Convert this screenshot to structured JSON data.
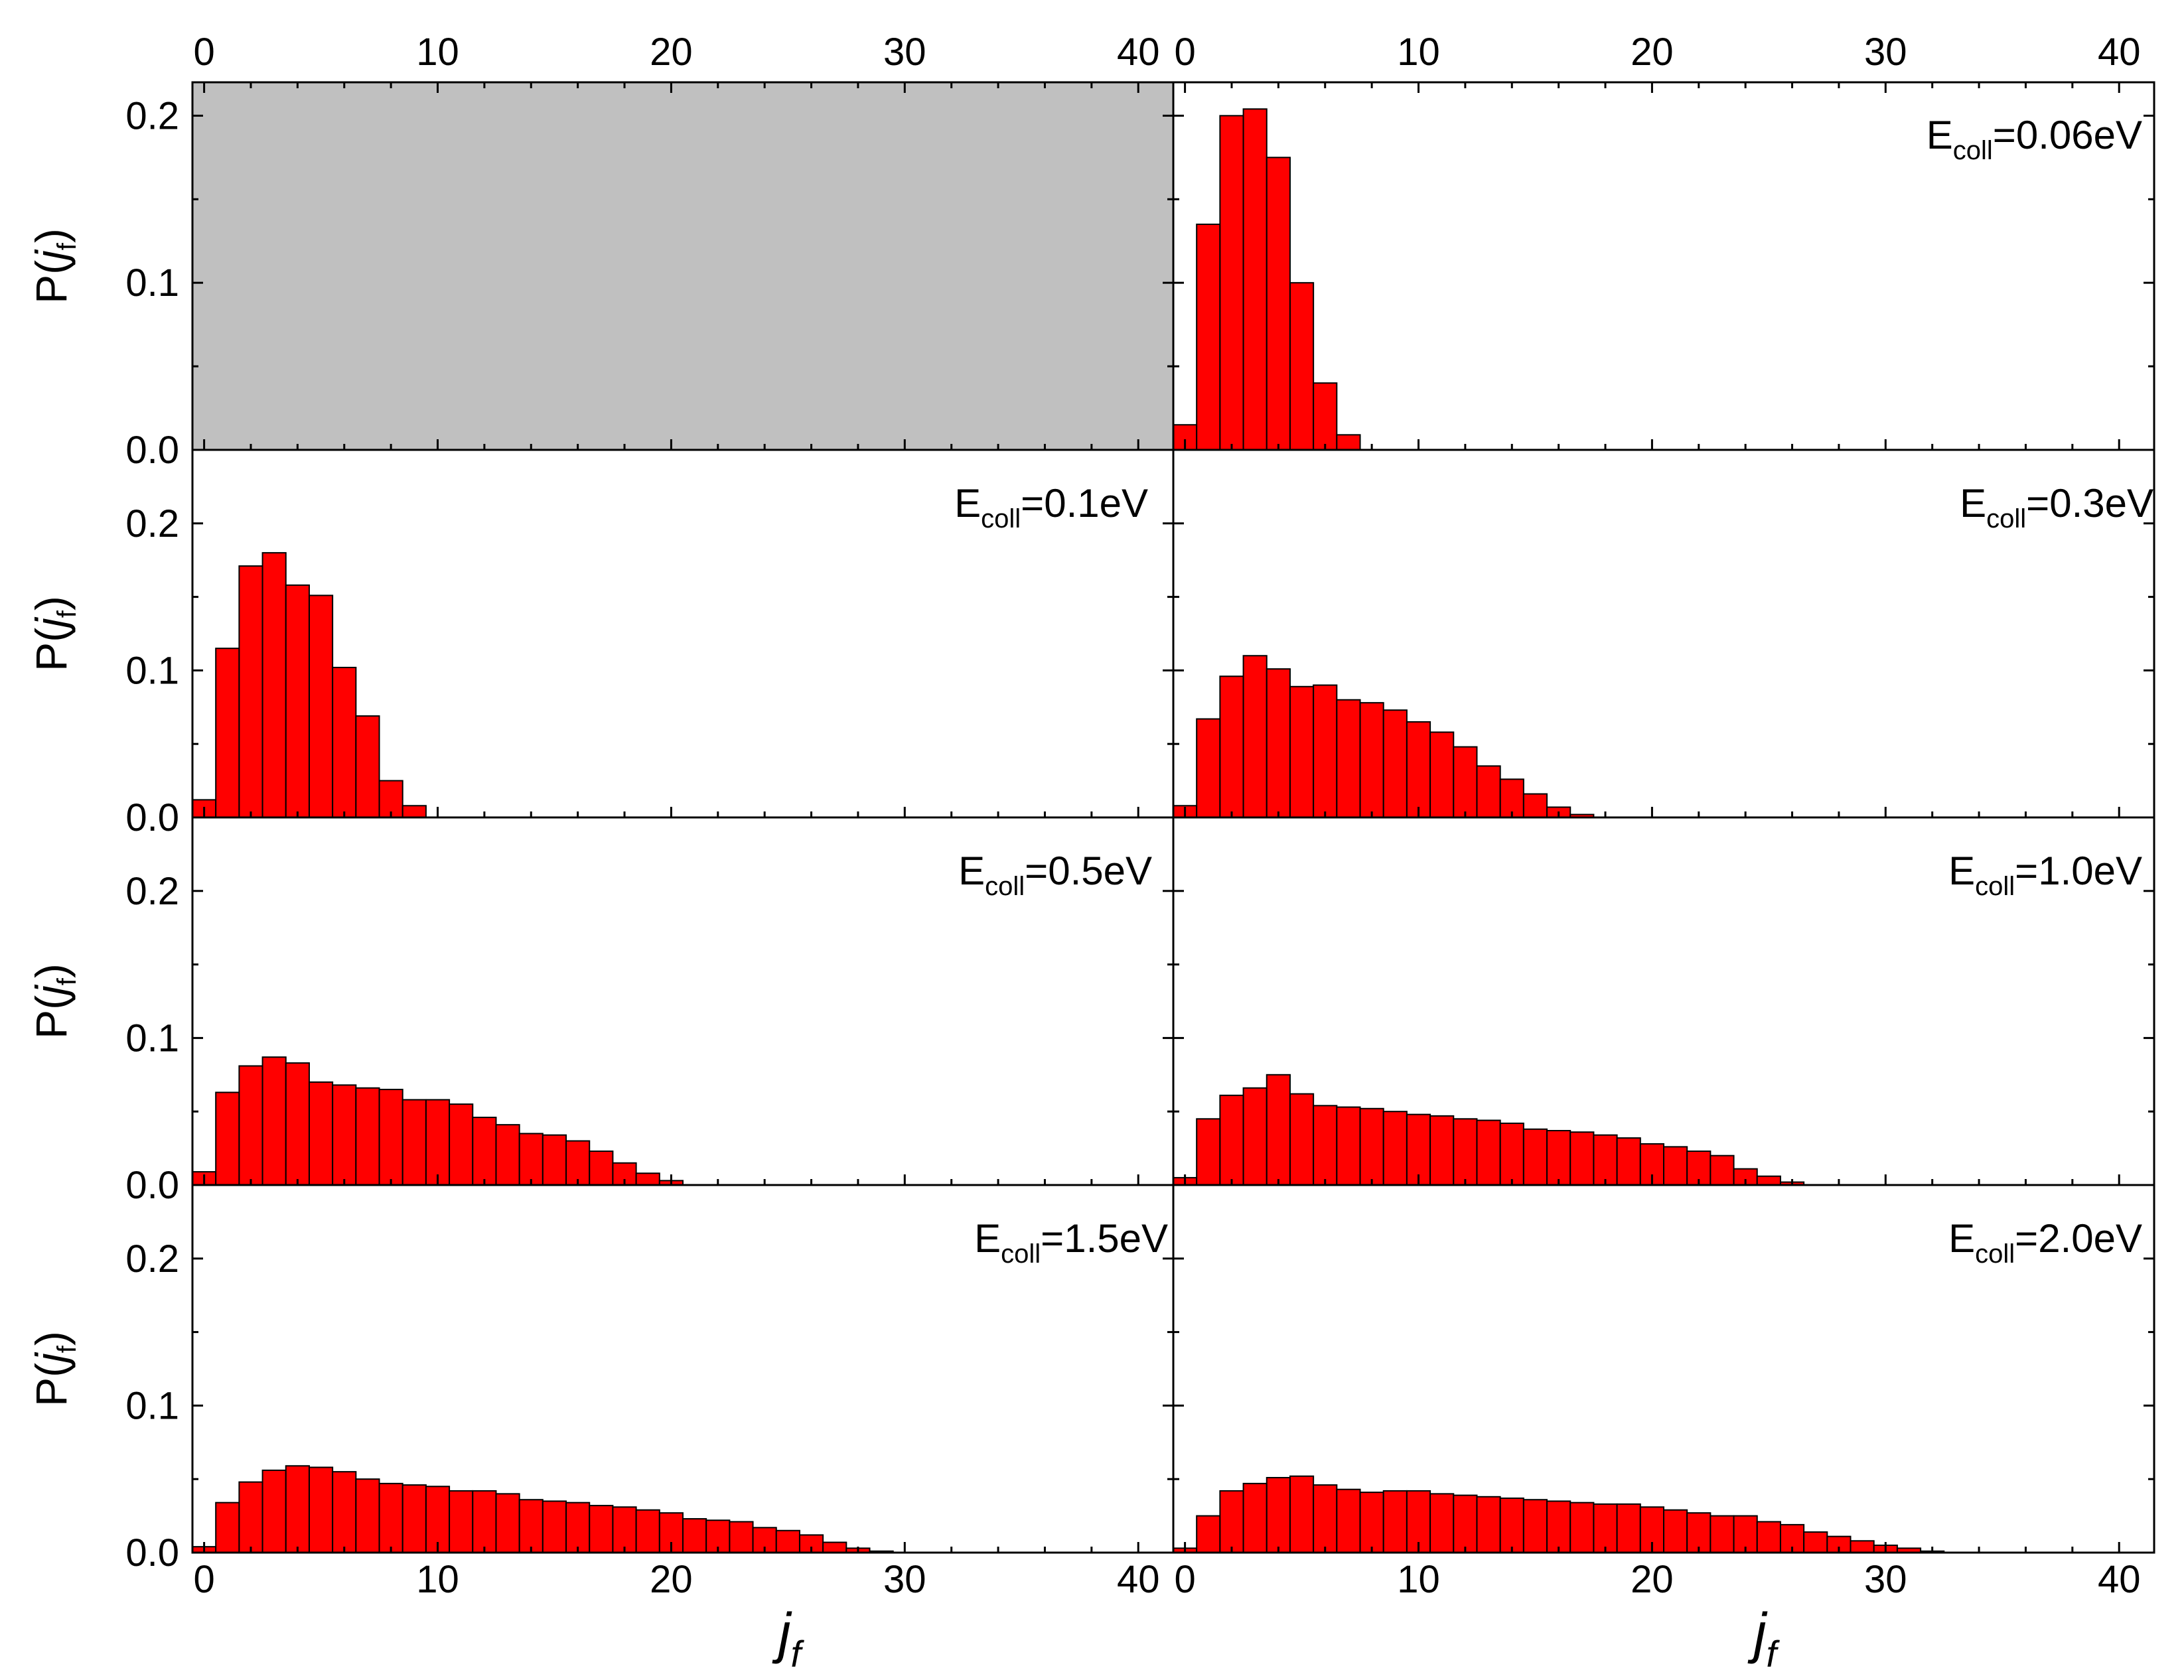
{
  "figure": {
    "type": "bar-histogram-grid",
    "x_title": "j",
    "x_title_sub": "f",
    "y_title_prefix": "P(",
    "y_title_var": "j",
    "y_title_sub": "f",
    "y_title_suffix": ")",
    "colors": {
      "bar_fill": "#ff0000",
      "bar_stroke": "#000000",
      "empty_panel": "#c0c0c0",
      "axis": "#000000"
    }
  },
  "chart_data": [
    {
      "type": "bar",
      "panel": "top-left",
      "empty": true,
      "label": "",
      "xlim": [
        -0.5,
        41.5
      ],
      "ylim": [
        0,
        0.22
      ],
      "xticks": [
        "0",
        "10",
        "20",
        "30",
        "40"
      ],
      "yticks": [
        "0.0",
        "0.1",
        "0.2"
      ],
      "values": []
    },
    {
      "type": "bar",
      "panel": "top-right",
      "empty": false,
      "label": {
        "prefix": "E",
        "sub": "coll",
        "value": "=0.06eV"
      },
      "xlim": [
        -0.5,
        41.5
      ],
      "ylim": [
        0,
        0.22
      ],
      "xticks": [
        "0",
        "10",
        "20",
        "30",
        "40"
      ],
      "yticks": [],
      "values": [
        0.015,
        0.135,
        0.2,
        0.204,
        0.175,
        0.1,
        0.04,
        0.009
      ]
    },
    {
      "type": "bar",
      "panel": "row2-left",
      "empty": false,
      "label": {
        "prefix": "E",
        "sub": "coll",
        "value": "=0.1eV"
      },
      "xlim": [
        -0.5,
        41.5
      ],
      "ylim": [
        0,
        0.25
      ],
      "xticks": [],
      "yticks": [
        "0.0",
        "0.1",
        "0.2"
      ],
      "values": [
        0.012,
        0.115,
        0.171,
        0.18,
        0.158,
        0.151,
        0.102,
        0.069,
        0.025,
        0.008
      ]
    },
    {
      "type": "bar",
      "panel": "row2-right",
      "empty": false,
      "label": {
        "prefix": "E",
        "sub": "coll",
        "value": "=0.3eV"
      },
      "xlim": [
        -0.5,
        41.5
      ],
      "ylim": [
        0,
        0.25
      ],
      "xticks": [],
      "yticks": [],
      "values": [
        0.008,
        0.067,
        0.096,
        0.11,
        0.101,
        0.089,
        0.09,
        0.08,
        0.078,
        0.073,
        0.065,
        0.058,
        0.048,
        0.035,
        0.026,
        0.016,
        0.007,
        0.002
      ]
    },
    {
      "type": "bar",
      "panel": "row3-left",
      "empty": false,
      "label": {
        "prefix": "E",
        "sub": "coll",
        "value": "=0.5eV"
      },
      "xlim": [
        -0.5,
        41.5
      ],
      "ylim": [
        0,
        0.25
      ],
      "xticks": [],
      "yticks": [
        "0.0",
        "0.1",
        "0.2"
      ],
      "values": [
        0.009,
        0.063,
        0.081,
        0.087,
        0.083,
        0.07,
        0.068,
        0.066,
        0.065,
        0.058,
        0.058,
        0.055,
        0.046,
        0.041,
        0.035,
        0.034,
        0.03,
        0.023,
        0.015,
        0.008,
        0.003
      ]
    },
    {
      "type": "bar",
      "panel": "row3-right",
      "empty": false,
      "label": {
        "prefix": "E",
        "sub": "coll",
        "value": "=1.0eV"
      },
      "xlim": [
        -0.5,
        41.5
      ],
      "ylim": [
        0,
        0.25
      ],
      "xticks": [],
      "yticks": [],
      "values": [
        0.005,
        0.045,
        0.061,
        0.066,
        0.075,
        0.062,
        0.054,
        0.053,
        0.052,
        0.05,
        0.048,
        0.047,
        0.045,
        0.044,
        0.042,
        0.038,
        0.037,
        0.036,
        0.034,
        0.032,
        0.028,
        0.026,
        0.023,
        0.02,
        0.011,
        0.006,
        0.002
      ]
    },
    {
      "type": "bar",
      "panel": "row4-left",
      "empty": false,
      "label": {
        "prefix": "E",
        "sub": "coll",
        "value": "=1.5eV"
      },
      "xlim": [
        -0.5,
        41.5
      ],
      "ylim": [
        0,
        0.25
      ],
      "xticks": [
        "0",
        "10",
        "20",
        "30",
        "40"
      ],
      "yticks": [
        "0.0",
        "0.1",
        "0.2"
      ],
      "values": [
        0.004,
        0.034,
        0.048,
        0.056,
        0.059,
        0.058,
        0.055,
        0.05,
        0.047,
        0.046,
        0.045,
        0.042,
        0.042,
        0.04,
        0.036,
        0.035,
        0.034,
        0.032,
        0.031,
        0.029,
        0.027,
        0.023,
        0.022,
        0.021,
        0.017,
        0.015,
        0.012,
        0.007,
        0.003,
        0.001
      ]
    },
    {
      "type": "bar",
      "panel": "row4-right",
      "empty": false,
      "label": {
        "prefix": "E",
        "sub": "coll",
        "value": "=2.0eV"
      },
      "xlim": [
        -0.5,
        41.5
      ],
      "ylim": [
        0,
        0.25
      ],
      "xticks": [
        "0",
        "10",
        "20",
        "30",
        "40"
      ],
      "yticks": [],
      "values": [
        0.003,
        0.025,
        0.042,
        0.047,
        0.051,
        0.052,
        0.046,
        0.043,
        0.041,
        0.042,
        0.042,
        0.04,
        0.039,
        0.038,
        0.037,
        0.036,
        0.035,
        0.034,
        0.033,
        0.033,
        0.031,
        0.029,
        0.027,
        0.025,
        0.025,
        0.021,
        0.019,
        0.014,
        0.011,
        0.008,
        0.005,
        0.003,
        0.001
      ]
    }
  ]
}
